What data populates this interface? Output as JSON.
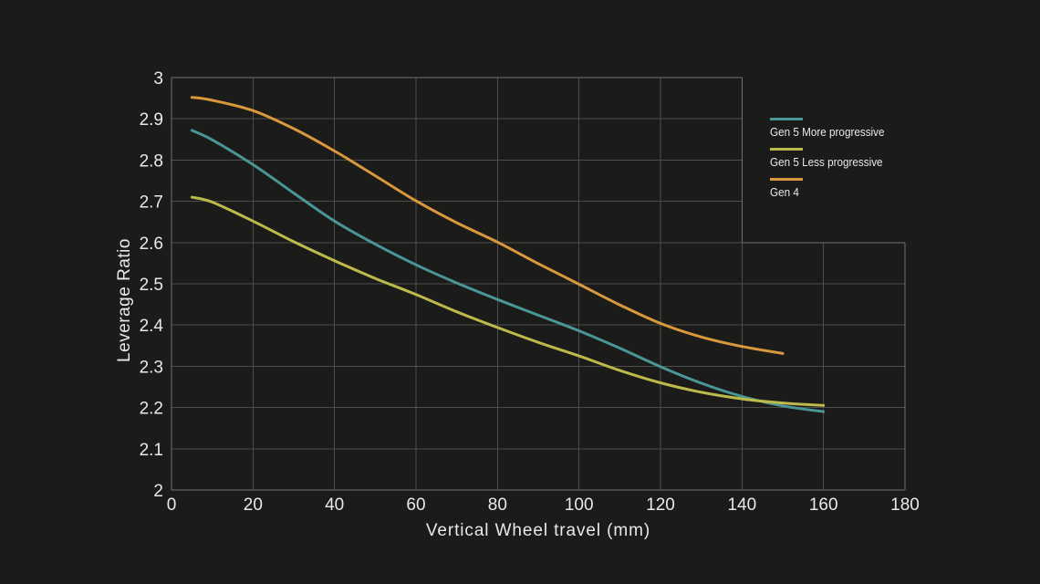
{
  "colors": {
    "background": "#1B1B19",
    "grid_line": "#4D4D4D",
    "frame_line": "#707070",
    "text": "#E9E9E9"
  },
  "chart_data": {
    "type": "line",
    "title": "",
    "xlabel": "Vertical Wheel travel (mm)",
    "ylabel": "Leverage Ratio",
    "xlim": [
      0,
      180
    ],
    "ylim": [
      2,
      3
    ],
    "x_tick_values": [
      0,
      20,
      40,
      60,
      80,
      100,
      120,
      140,
      160,
      180
    ],
    "x_tick_labels": [
      "0",
      "20",
      "40",
      "60",
      "80",
      "100",
      "120",
      "140",
      "160",
      "180"
    ],
    "y_tick_values": [
      2,
      2.1,
      2.2,
      2.3,
      2.4,
      2.5,
      2.6,
      2.7,
      2.8,
      2.9,
      3
    ],
    "y_tick_labels": [
      "2",
      "2.1",
      "2.2",
      "2.3",
      "2.4",
      "2.5",
      "2.6",
      "2.7",
      "2.8",
      "2.9",
      "3"
    ],
    "grid": "on",
    "legend_position": "top-right inside grid cutout",
    "grid_cutout": {
      "x_beyond": 140,
      "y_above": 2.6
    },
    "series": [
      {
        "name": "Gen 5 More progressive",
        "color": "#4A9596",
        "points": [
          [
            5,
            2.872
          ],
          [
            10,
            2.849
          ],
          [
            20,
            2.789
          ],
          [
            30,
            2.72
          ],
          [
            40,
            2.652
          ],
          [
            50,
            2.596
          ],
          [
            60,
            2.546
          ],
          [
            70,
            2.502
          ],
          [
            80,
            2.462
          ],
          [
            90,
            2.424
          ],
          [
            100,
            2.386
          ],
          [
            110,
            2.344
          ],
          [
            120,
            2.299
          ],
          [
            130,
            2.259
          ],
          [
            140,
            2.227
          ],
          [
            150,
            2.204
          ],
          [
            160,
            2.19
          ]
        ]
      },
      {
        "name": "Gen 5 Less progressive",
        "color": "#BCBA4A",
        "points": [
          [
            5,
            2.71
          ],
          [
            10,
            2.698
          ],
          [
            20,
            2.652
          ],
          [
            30,
            2.602
          ],
          [
            40,
            2.556
          ],
          [
            50,
            2.513
          ],
          [
            60,
            2.474
          ],
          [
            70,
            2.432
          ],
          [
            80,
            2.394
          ],
          [
            90,
            2.358
          ],
          [
            100,
            2.325
          ],
          [
            110,
            2.29
          ],
          [
            120,
            2.26
          ],
          [
            130,
            2.237
          ],
          [
            140,
            2.221
          ],
          [
            150,
            2.211
          ],
          [
            160,
            2.205
          ]
        ]
      },
      {
        "name": "Gen 4",
        "color": "#D9983C",
        "points": [
          [
            5,
            2.952
          ],
          [
            10,
            2.945
          ],
          [
            20,
            2.92
          ],
          [
            30,
            2.876
          ],
          [
            40,
            2.822
          ],
          [
            50,
            2.762
          ],
          [
            60,
            2.701
          ],
          [
            70,
            2.648
          ],
          [
            80,
            2.601
          ],
          [
            90,
            2.549
          ],
          [
            100,
            2.499
          ],
          [
            110,
            2.449
          ],
          [
            120,
            2.404
          ],
          [
            130,
            2.371
          ],
          [
            140,
            2.348
          ],
          [
            150,
            2.331
          ]
        ]
      }
    ]
  }
}
